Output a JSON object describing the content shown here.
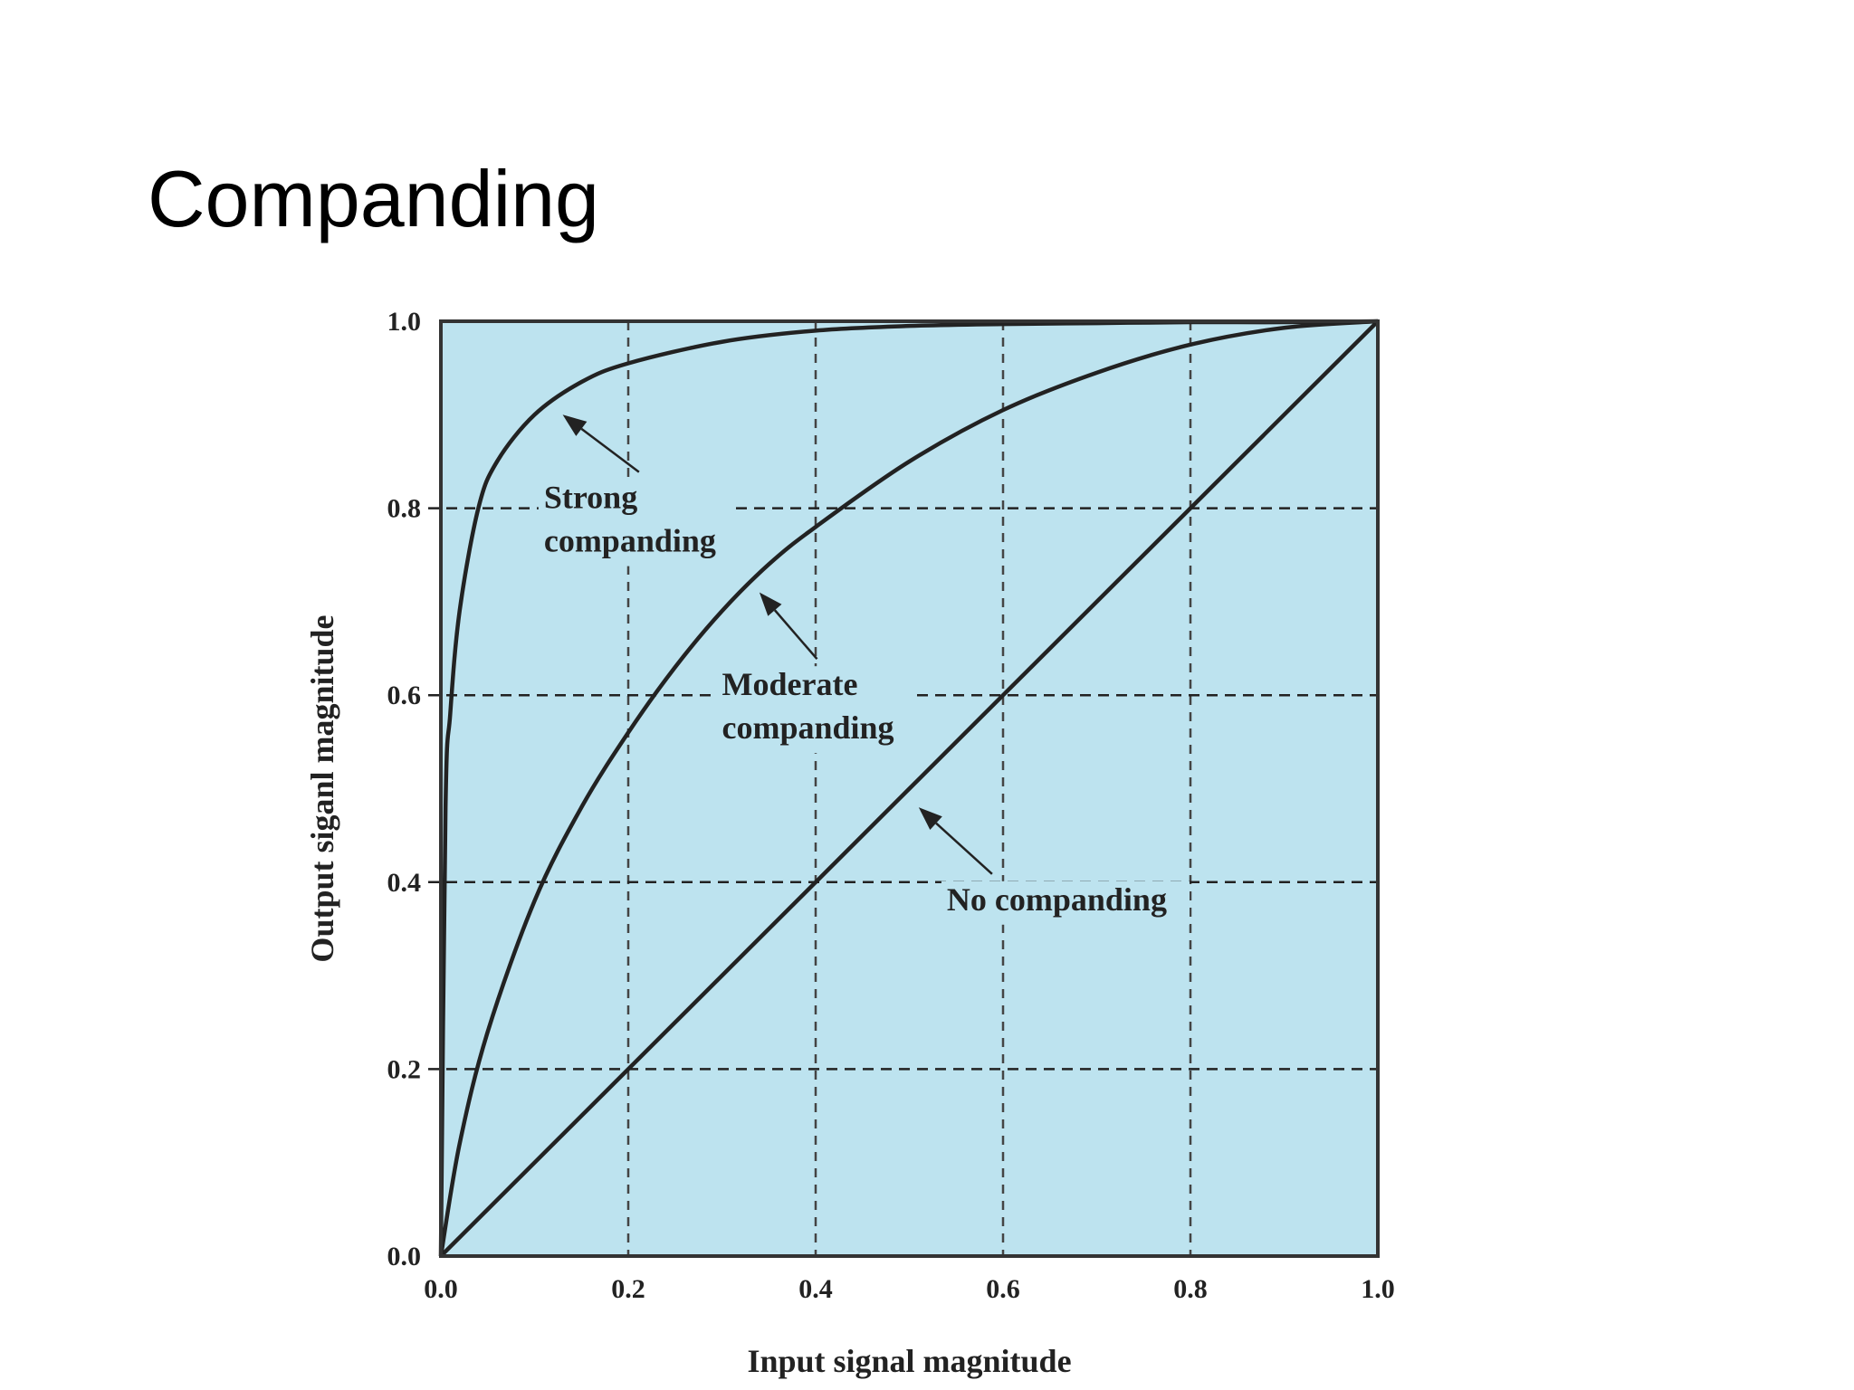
{
  "slide": {
    "title": "Companding"
  },
  "chart_data": {
    "type": "line",
    "title": "",
    "xlabel": "Input signal magnitude",
    "ylabel": "Output siganl magnitude",
    "xlim": [
      0.0,
      1.0
    ],
    "ylim": [
      0.0,
      1.0
    ],
    "xticks": [
      "0.0",
      "0.2",
      "0.4",
      "0.6",
      "0.8",
      "1.0"
    ],
    "yticks": [
      "0.0",
      "0.2",
      "0.4",
      "0.6",
      "0.8",
      "1.0"
    ],
    "grid": "dashed",
    "background_color": "#bde3ef",
    "line_color": "#222222",
    "series": [
      {
        "name": "Strong companding",
        "x": [
          0.0,
          0.005,
          0.01,
          0.02,
          0.04,
          0.06,
          0.1,
          0.15,
          0.2,
          0.3,
          0.4,
          0.5,
          0.6,
          0.7,
          0.8,
          0.9,
          1.0
        ],
        "y": [
          0.0,
          0.48,
          0.58,
          0.69,
          0.8,
          0.85,
          0.9,
          0.935,
          0.955,
          0.978,
          0.99,
          0.995,
          0.997,
          0.998,
          0.999,
          0.999,
          1.0
        ]
      },
      {
        "name": "Moderate companding",
        "x": [
          0.0,
          0.02,
          0.05,
          0.1,
          0.15,
          0.2,
          0.25,
          0.3,
          0.35,
          0.4,
          0.5,
          0.6,
          0.7,
          0.8,
          0.9,
          1.0
        ],
        "y": [
          0.0,
          0.12,
          0.24,
          0.38,
          0.48,
          0.56,
          0.63,
          0.69,
          0.74,
          0.78,
          0.85,
          0.905,
          0.945,
          0.975,
          0.993,
          1.0
        ]
      },
      {
        "name": "No companding",
        "x": [
          0.0,
          1.0
        ],
        "y": [
          0.0,
          1.0
        ]
      }
    ],
    "annotations": [
      {
        "lines": [
          "Strong",
          "companding"
        ],
        "at": [
          0.11,
          0.8
        ],
        "arrow_to": [
          0.13,
          0.9
        ]
      },
      {
        "lines": [
          "Moderate",
          "companding"
        ],
        "at": [
          0.3,
          0.6
        ],
        "arrow_to": [
          0.34,
          0.71
        ]
      },
      {
        "lines": [
          "No companding"
        ],
        "at": [
          0.54,
          0.37
        ],
        "arrow_to": [
          0.51,
          0.48
        ]
      }
    ]
  }
}
